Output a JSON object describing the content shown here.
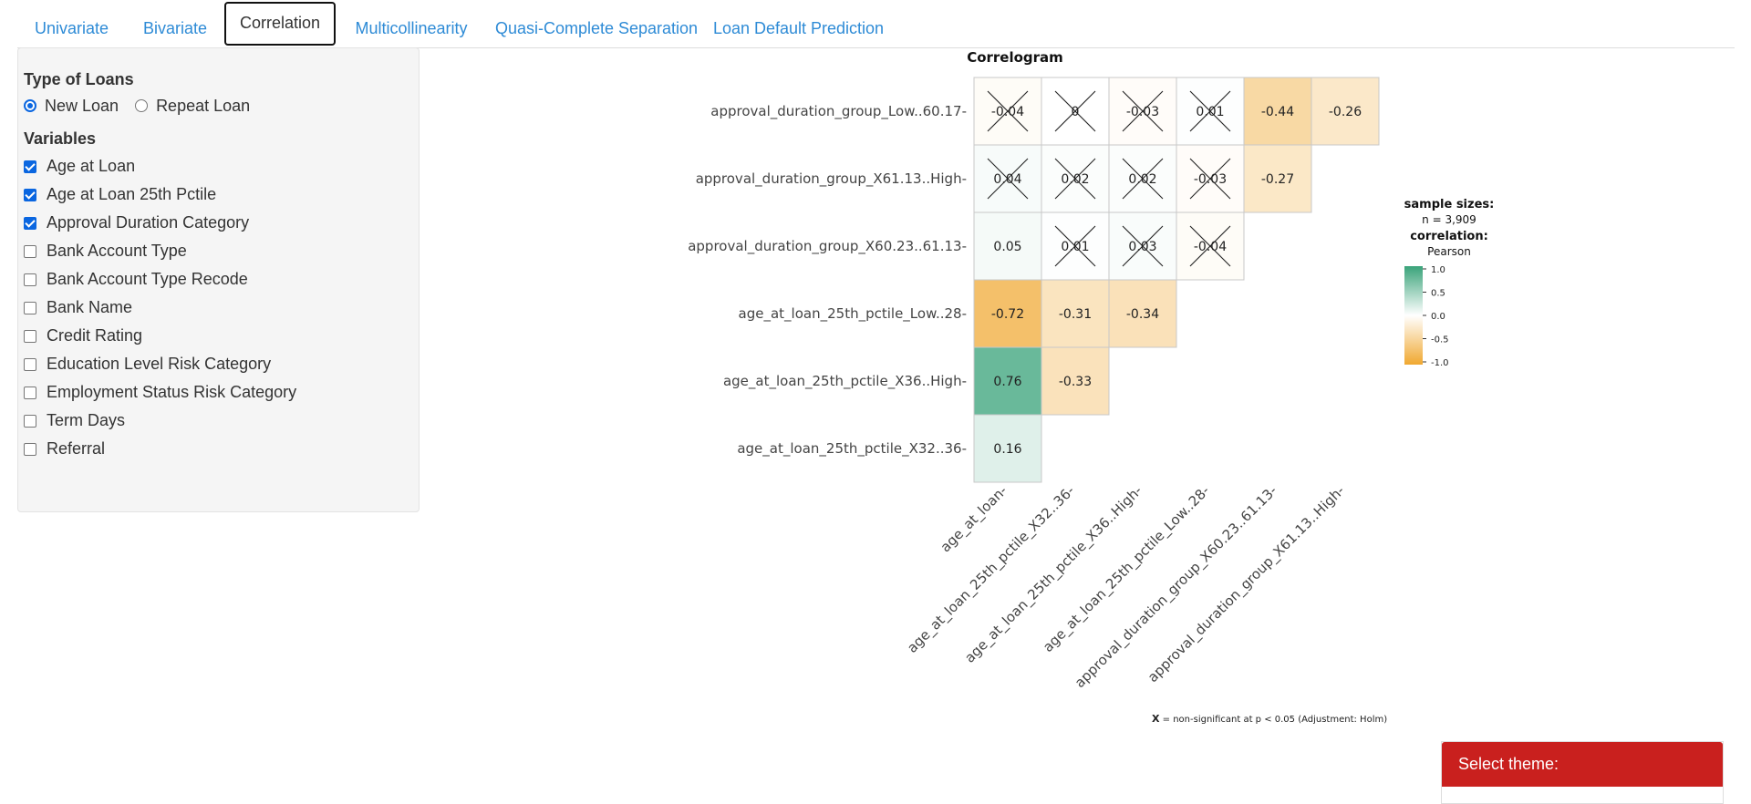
{
  "tabs": [
    {
      "label": "Univariate",
      "active": false
    },
    {
      "label": "Bivariate",
      "active": false
    },
    {
      "label": "Correlation",
      "active": true
    },
    {
      "label": "Multicollinearity",
      "active": false
    },
    {
      "label": "Quasi-Complete Separation",
      "active": false
    },
    {
      "label": "Loan Default Prediction",
      "active": false
    }
  ],
  "sidebar": {
    "loan_type_title": "Type of Loans",
    "loan_types": [
      {
        "label": "New Loan",
        "selected": true
      },
      {
        "label": "Repeat Loan",
        "selected": false
      }
    ],
    "variables_title": "Variables",
    "variables": [
      {
        "label": "Age at Loan",
        "checked": true
      },
      {
        "label": "Age at Loan 25th Pctile",
        "checked": true
      },
      {
        "label": "Approval Duration Category",
        "checked": true
      },
      {
        "label": "Bank Account Type",
        "checked": false
      },
      {
        "label": "Bank Account Type Recode",
        "checked": false
      },
      {
        "label": "Bank Name",
        "checked": false
      },
      {
        "label": "Credit Rating",
        "checked": false
      },
      {
        "label": "Education Level Risk Category",
        "checked": false
      },
      {
        "label": "Employment Status Risk Category",
        "checked": false
      },
      {
        "label": "Term Days",
        "checked": false
      },
      {
        "label": "Referral",
        "checked": false
      }
    ]
  },
  "chart_data": {
    "type": "heatmap",
    "title": "Correlogram",
    "rows": [
      "approval_duration_group_Low..60.17",
      "approval_duration_group_X61.13..High",
      "approval_duration_group_X60.23..61.13",
      "age_at_loan_25th_pctile_Low..28",
      "age_at_loan_25th_pctile_X36..High",
      "age_at_loan_25th_pctile_X32..36"
    ],
    "columns": [
      "age_at_loan",
      "age_at_loan_25th_pctile_X32..36",
      "age_at_loan_25th_pctile_X36..High",
      "age_at_loan_25th_pctile_Low..28",
      "approval_duration_group_X60.23..61.13",
      "approval_duration_group_X61.13..High"
    ],
    "cells": [
      [
        {
          "v": -0.04,
          "t": "-0.04",
          "ns": true
        },
        {
          "v": 0,
          "t": "0",
          "ns": true
        },
        {
          "v": -0.03,
          "t": "-0.03",
          "ns": true
        },
        {
          "v": 0.01,
          "t": "0.01",
          "ns": true
        },
        {
          "v": -0.44,
          "t": "-0.44",
          "ns": false
        },
        {
          "v": -0.26,
          "t": "-0.26",
          "ns": false
        }
      ],
      [
        {
          "v": 0.04,
          "t": "0.04",
          "ns": true
        },
        {
          "v": 0.02,
          "t": "0.02",
          "ns": true
        },
        {
          "v": 0.02,
          "t": "0.02",
          "ns": true
        },
        {
          "v": -0.03,
          "t": "-0.03",
          "ns": true
        },
        {
          "v": -0.27,
          "t": "-0.27",
          "ns": false
        }
      ],
      [
        {
          "v": 0.05,
          "t": "0.05",
          "ns": false
        },
        {
          "v": 0.01,
          "t": "0.01",
          "ns": true
        },
        {
          "v": 0.03,
          "t": "0.03",
          "ns": true
        },
        {
          "v": -0.04,
          "t": "-0.04",
          "ns": true
        }
      ],
      [
        {
          "v": -0.72,
          "t": "-0.72",
          "ns": false
        },
        {
          "v": -0.31,
          "t": "-0.31",
          "ns": false
        },
        {
          "v": -0.34,
          "t": "-0.34",
          "ns": false
        }
      ],
      [
        {
          "v": 0.76,
          "t": "0.76",
          "ns": false
        },
        {
          "v": -0.33,
          "t": "-0.33",
          "ns": false
        }
      ],
      [
        {
          "v": 0.16,
          "t": "0.16",
          "ns": false
        }
      ]
    ],
    "legend": {
      "sample_title": "sample sizes:",
      "sample_n": "n = 3,909",
      "corr_title": "correlation:",
      "corr_method": "Pearson",
      "ticks": [
        "1.0",
        "0.5",
        "0.0",
        "-0.5",
        "-1.0"
      ],
      "colors": {
        "high": "#3aa37a",
        "mid": "#ffffff",
        "low": "#f0a830"
      }
    },
    "caption_x": "X",
    "caption": "= non-significant at p < 0.05 (Adjustment: Holm)"
  },
  "theme": {
    "label": "Select theme:"
  }
}
